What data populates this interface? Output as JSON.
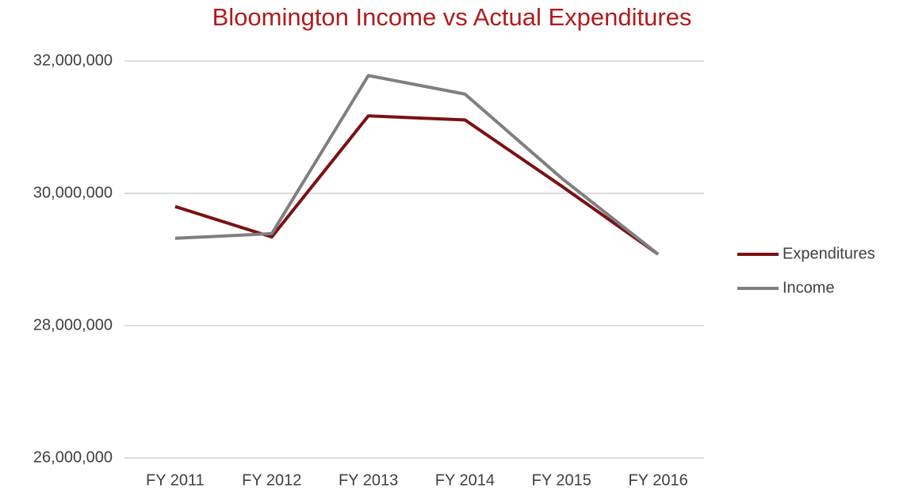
{
  "chart_data": {
    "type": "line",
    "title": "Bloomington Income vs Actual Expenditures",
    "categories": [
      "FY 2011",
      "FY 2012",
      "FY 2013",
      "FY 2014",
      "FY 2015",
      "FY 2016"
    ],
    "series": [
      {
        "name": "Expenditures",
        "color": "#7b1113",
        "values": [
          29800000,
          29340000,
          31170000,
          31110000,
          30110000,
          29080000
        ]
      },
      {
        "name": "Income",
        "color": "#7f7f7f",
        "values": [
          29320000,
          29390000,
          31780000,
          31500000,
          30230000,
          29080000
        ]
      }
    ],
    "ylim": [
      26000000,
      32000000
    ],
    "yticks": [
      {
        "value": 26000000,
        "label": "26,000,000"
      },
      {
        "value": 28000000,
        "label": "28,000,000"
      },
      {
        "value": 30000000,
        "label": "30,000,000"
      },
      {
        "value": 32000000,
        "label": "32,000,000"
      }
    ],
    "grid": true,
    "legend": "right"
  }
}
